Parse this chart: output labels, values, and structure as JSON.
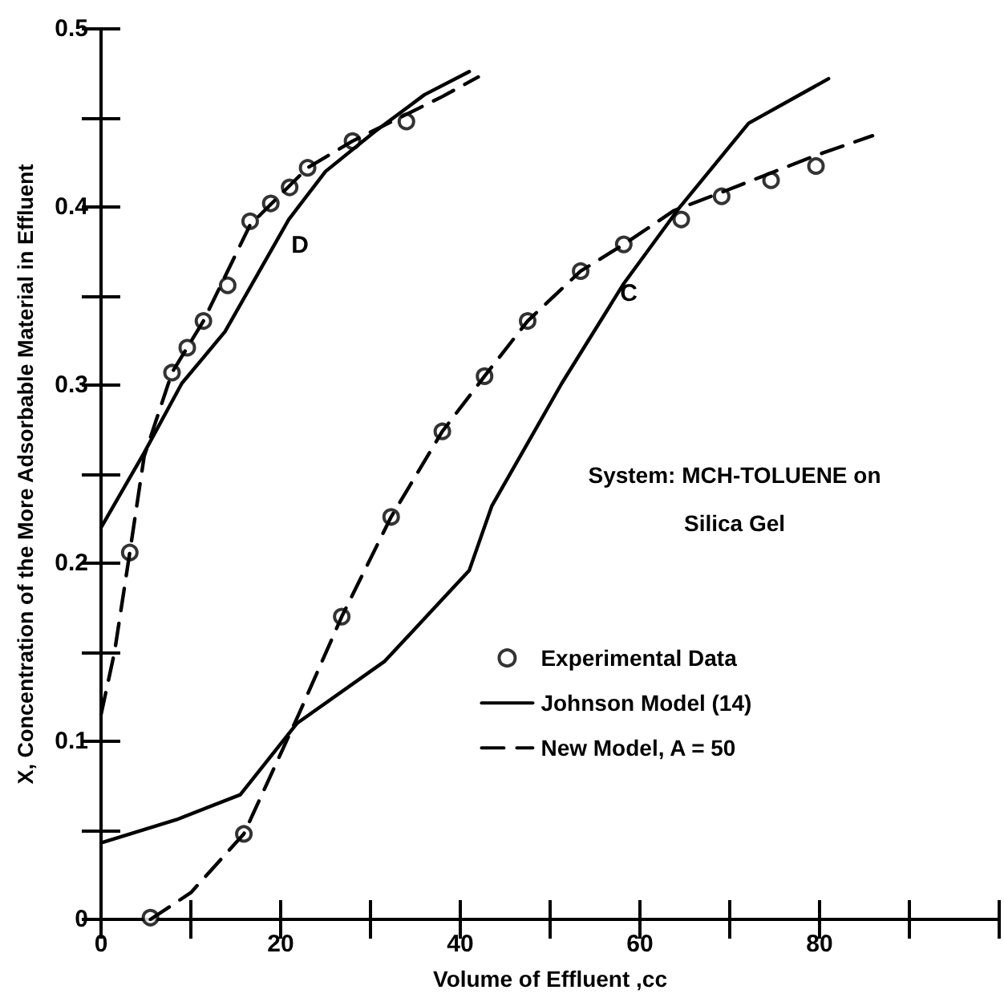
{
  "chart_data": {
    "type": "line",
    "xlabel": "Volume of Effluent ,cc",
    "ylabel": "X, Concentration of the More Adsorbable Material in Effluent",
    "xlim": [
      0,
      100
    ],
    "ylim": [
      0,
      0.5
    ],
    "xticks": [
      0,
      {
        "value": 10,
        "label": null
      },
      20,
      {
        "value": 30,
        "label": null
      },
      40,
      {
        "value": 50,
        "label": null
      },
      60,
      {
        "value": 70,
        "label": null
      },
      80,
      {
        "value": 90,
        "label": null
      },
      {
        "value": 100,
        "label": null
      }
    ],
    "yticks": [
      0,
      {
        "value": 0.05,
        "label": null
      },
      0.1,
      {
        "value": 0.15,
        "label": null
      },
      0.2,
      {
        "value": 0.25,
        "label": null
      },
      0.3,
      {
        "value": 0.35,
        "label": null
      },
      0.4,
      {
        "value": 0.45,
        "label": null
      },
      0.5
    ],
    "grid": false,
    "legend": "right",
    "series": [
      {
        "name": "Experimental Data",
        "type": "scatter",
        "marker": "circle",
        "color": "#000000",
        "x": [
          3.2,
          7.9,
          9.6,
          11.4,
          14.1,
          16.6,
          18.9,
          21,
          23,
          28,
          34,
          5.5,
          15.9,
          26.8,
          32.3,
          38,
          42.7,
          47.5,
          53.4,
          58.2,
          64.6,
          69.1,
          74.6,
          79.6
        ],
        "values": [
          0.206,
          0.307,
          0.321,
          0.336,
          0.356,
          0.392,
          0.402,
          0.411,
          0.422,
          0.437,
          0.448,
          0.001,
          0.048,
          0.17,
          0.226,
          0.274,
          0.305,
          0.336,
          0.364,
          0.379,
          0.393,
          0.406,
          0.415,
          0.423
        ]
      },
      {
        "name": "Johnson Model (14)",
        "line_style": "solid",
        "marker": "none",
        "color": "#000000",
        "x": [
          0,
          4.8,
          9,
          13.8,
          20.9,
          25,
          30.4,
          36,
          41
        ],
        "values": [
          0.22,
          0.262,
          0.301,
          0.33,
          0.393,
          0.42,
          0.442,
          0.463,
          0.476
        ]
      },
      {
        "line_style": "solid",
        "marker": "none",
        "color": "#000000",
        "x": [
          0,
          8.4,
          15.5,
          21.8,
          31.6,
          41,
          43.5,
          51.3,
          58.2,
          64.3,
          72.1,
          81
        ],
        "values": [
          0.043,
          0.056,
          0.07,
          0.11,
          0.145,
          0.196,
          0.232,
          0.301,
          0.357,
          0.399,
          0.447,
          0.472
        ]
      },
      {
        "name": "New Model, A = 50",
        "line_style": "dashed",
        "marker": "none",
        "color": "#000000",
        "x": [
          0,
          1.5,
          3.2,
          4.8,
          7.9,
          11.4,
          16.6,
          23,
          28,
          34,
          38,
          42
        ],
        "values": [
          0.115,
          0.15,
          0.206,
          0.26,
          0.307,
          0.336,
          0.39,
          0.422,
          0.437,
          0.452,
          0.462,
          0.473
        ]
      },
      {
        "line_style": "dashed",
        "marker": "none",
        "color": "#000000",
        "x": [
          5.5,
          10,
          15.9,
          22,
          26.8,
          32.3,
          38,
          42.7,
          47.5,
          53.4,
          58.2,
          63.8,
          70,
          79.6,
          85.9
        ],
        "values": [
          0,
          0.015,
          0.048,
          0.115,
          0.17,
          0.226,
          0.274,
          0.305,
          0.336,
          0.364,
          0.379,
          0.398,
          0.41,
          0.429,
          0.44
        ]
      }
    ],
    "annotations": [
      "D",
      "C",
      "System: MCH-TOLUENE on",
      "Silica Gel"
    ]
  }
}
